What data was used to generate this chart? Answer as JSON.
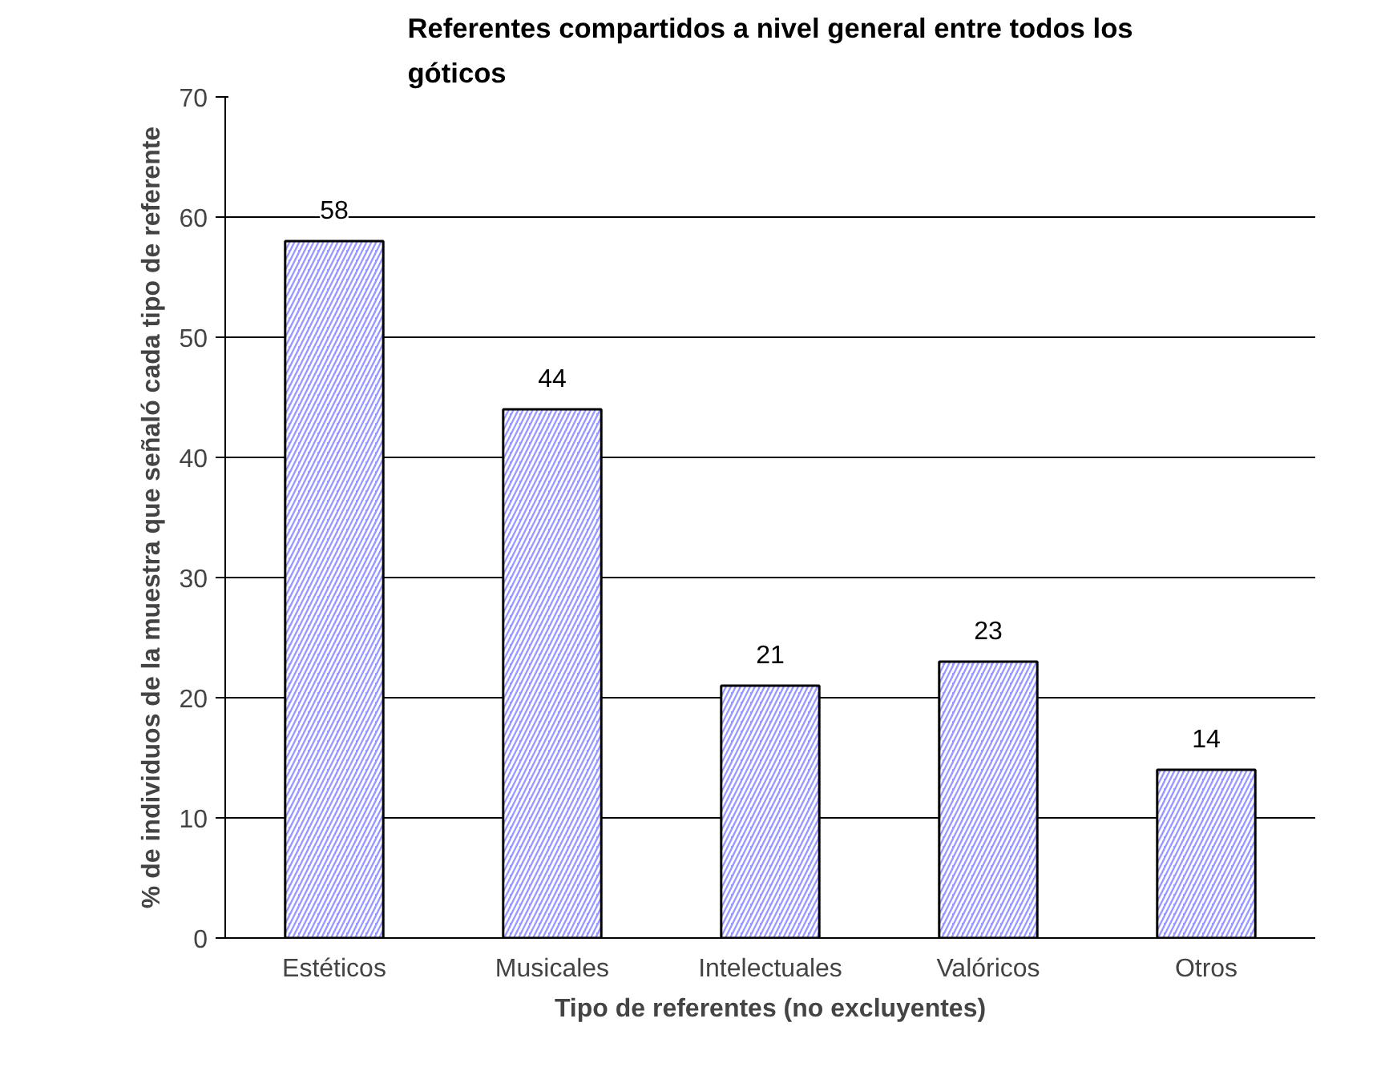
{
  "chart_data": {
    "type": "bar",
    "title": "Referentes compartidos a nivel general entre todos los góticos",
    "xlabel": "Tipo de referentes (no excluyentes)",
    "ylabel": "% de individuos de la muestra que señaló cada tipo de referente",
    "categories": [
      "Estéticos",
      "Musicales",
      "Intelectuales",
      "Valóricos",
      "Otros"
    ],
    "values": [
      58,
      44,
      21,
      23,
      14
    ],
    "color": "#9999ff",
    "ylim": [
      0,
      70
    ],
    "yticks": [
      0,
      10,
      20,
      30,
      40,
      50,
      60,
      70
    ],
    "grid": "y",
    "data_labels": true
  }
}
